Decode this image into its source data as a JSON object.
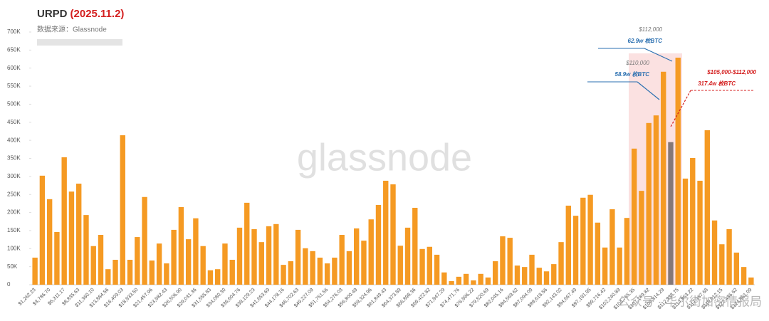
{
  "chart_data": {
    "type": "bar",
    "title": "URPD",
    "title_date": "(2025.11.2)",
    "subtitle": "数据来源：Glassnode",
    "watermark": "glassnode",
    "footer_watermark": "公众号 · 华尔街加密情报局",
    "color": "#f59a23",
    "highlight": {
      "index": 87,
      "color": "#857878"
    },
    "ylim": [
      0,
      700000
    ],
    "yticks": [
      {
        "value": 0,
        "label": "0"
      },
      {
        "value": 50000,
        "label": "50K"
      },
      {
        "value": 100000,
        "label": "100K"
      },
      {
        "value": 150000,
        "label": "150K"
      },
      {
        "value": 200000,
        "label": "200K"
      },
      {
        "value": 250000,
        "label": "250K"
      },
      {
        "value": 300000,
        "label": "300K"
      },
      {
        "value": 350000,
        "label": "350K"
      },
      {
        "value": 400000,
        "label": "400K"
      },
      {
        "value": 450000,
        "label": "450K"
      },
      {
        "value": 500000,
        "label": "500K"
      },
      {
        "value": 550000,
        "label": "550K"
      },
      {
        "value": 600000,
        "label": "600K"
      },
      {
        "value": 650000,
        "label": "650K"
      },
      {
        "value": 700000,
        "label": "700K"
      }
    ],
    "categories": [
      "$1,262.23",
      null,
      "$3,786.70",
      null,
      "$6,311.17",
      null,
      "$8,835.63",
      null,
      "$11,360.10",
      null,
      "$13,884.56",
      null,
      "$16,409.03",
      null,
      "$18,933.50",
      null,
      "$21,457.96",
      null,
      "$23,982.43",
      null,
      "$26,506.90",
      null,
      "$29,031.36",
      null,
      "$31,555.83",
      null,
      "$34,080.30",
      null,
      "$36,604.76",
      null,
      "$39,129.23",
      null,
      "$41,653.69",
      null,
      "$44,178.16",
      null,
      "$46,702.63",
      null,
      "$49,227.09",
      null,
      "$51,751.56",
      null,
      "$54,276.03",
      null,
      "$56,800.49",
      null,
      "$59,324.96",
      null,
      "$61,849.43",
      null,
      "$64,373.89",
      null,
      "$66,898.36",
      null,
      "$69,422.82",
      null,
      "$71,947.29",
      null,
      "$74,471.76",
      null,
      "$76,996.22",
      null,
      "$79,520.69",
      null,
      "$82,045.16",
      null,
      "$84,569.62",
      null,
      "$87,094.09",
      null,
      "$89,618.56",
      null,
      "$92,143.02",
      null,
      "$94,667.49",
      null,
      "$97,191.95",
      null,
      "$99,716.42",
      null,
      "$102,240.89",
      null,
      "$104,765.35",
      null,
      "$107,289.82",
      null,
      "$109,814.29",
      null,
      "$112,338.75",
      null,
      "$114,863.22",
      null,
      "$117,387.68",
      null,
      "$119,912.15",
      null,
      "$122,436.62",
      null,
      "$124,961.09"
    ],
    "values": [
      75000,
      302000,
      237000,
      146000,
      353000,
      258000,
      280000,
      193000,
      107000,
      138000,
      43000,
      69000,
      414000,
      69000,
      132000,
      243000,
      67000,
      114000,
      59000,
      152000,
      215000,
      126000,
      184000,
      107000,
      40000,
      43000,
      114000,
      69000,
      158000,
      227000,
      154000,
      118000,
      162000,
      168000,
      55000,
      65000,
      152000,
      101000,
      93000,
      75000,
      59000,
      75000,
      138000,
      93000,
      156000,
      122000,
      181000,
      221000,
      288000,
      278000,
      108000,
      158000,
      213000,
      99000,
      105000,
      83000,
      34000,
      10000,
      22000,
      30000,
      12000,
      30000,
      20000,
      65000,
      134000,
      130000,
      53000,
      49000,
      83000,
      47000,
      37000,
      57000,
      118000,
      219000,
      191000,
      241000,
      249000,
      172000,
      103000,
      209000,
      103000,
      185000,
      377000,
      260000,
      448000,
      469000,
      590000,
      395000,
      629000,
      294000,
      351000,
      288000,
      428000,
      178000,
      112000,
      154000,
      89000,
      49000,
      20000
    ],
    "annotations": [
      {
        "price": "$112,000",
        "amount": "62.9w 枚BTC"
      },
      {
        "price": "$110,000",
        "amount": "58.9w 枚BTC"
      },
      {
        "price": "$105,000-$112,000",
        "amount": "317.4w 枚BTC"
      }
    ]
  }
}
